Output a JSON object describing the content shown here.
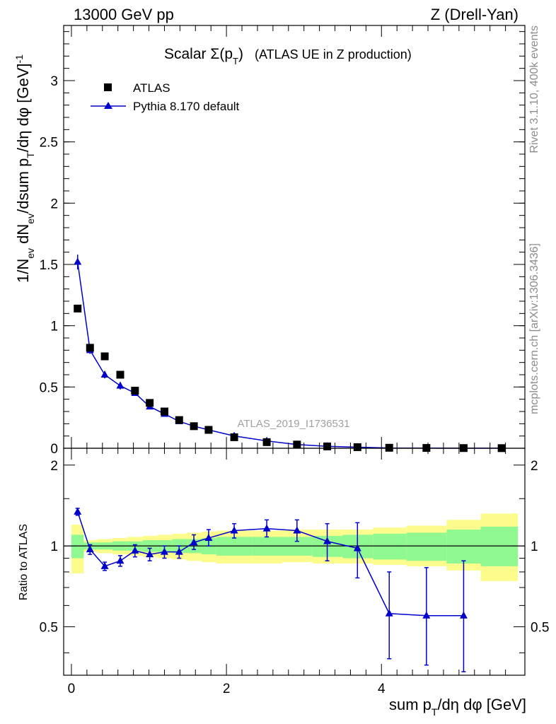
{
  "header": {
    "left": "13000 GeV pp",
    "right": "Z (Drell-Yan)"
  },
  "side": {
    "rivet": "Rivet 3.1.10,  400k events",
    "mcplots": "mcplots.cern.ch [arXiv:1306.3436]"
  },
  "watermark": "ATLAS_2019_I1736531",
  "colors": {
    "mc": "#0000cc",
    "data": "#000000",
    "band_stat": "#90f890",
    "band_total": "#fcfc8c",
    "side_text": "#8c8c8c"
  },
  "chart_data": [
    {
      "type": "scatter",
      "title": "Scalar Σ(pT) (ATLAS UE in Z production)",
      "ylabel": "1/Nev dNev/dsum pT/dη dφ [GeV]-1",
      "xlim": [
        -0.1,
        5.85
      ],
      "ylim": [
        0,
        3.45
      ],
      "yticks": [
        "0",
        "0.5",
        "1",
        "1.5",
        "2",
        "2.5",
        "3"
      ],
      "legend": {
        "position": "top-left",
        "entries": [
          "ATLAS",
          "Pythia 8.170 default"
        ]
      },
      "x": [
        0.08,
        0.24,
        0.43,
        0.63,
        0.82,
        1.01,
        1.2,
        1.39,
        1.58,
        1.77,
        2.1,
        2.52,
        2.91,
        3.3,
        3.69,
        4.1,
        4.58,
        5.06,
        5.55
      ],
      "series": [
        {
          "name": "ATLAS",
          "marker": "square",
          "values": [
            1.14,
            0.82,
            0.75,
            0.6,
            0.47,
            0.37,
            0.3,
            0.23,
            0.18,
            0.15,
            0.09,
            0.05,
            0.03,
            0.015,
            0.009,
            0.004,
            0.0025,
            0.0015,
            0.0009
          ]
        },
        {
          "name": "Pythia 8.170 default",
          "marker": "triangle",
          "values": [
            1.52,
            0.8,
            0.6,
            0.51,
            0.45,
            0.34,
            0.28,
            0.22,
            0.18,
            0.15,
            0.1,
            0.06,
            0.03,
            0.016,
            0.009,
            0.002,
            0.0014,
            0.0008,
            0.0005
          ],
          "errors": [
            0.06,
            0.03,
            0.03,
            0.03,
            0.02,
            0.02,
            0.01,
            0.01,
            0.01,
            0.01,
            0.005,
            0.003,
            0.002,
            0.001,
            0.001,
            0.001,
            0.0005,
            0.0003,
            0.0002
          ]
        }
      ]
    },
    {
      "type": "line",
      "ylabel": "Ratio to ATLAS",
      "xlabel": "sum pT/dη dφ [GeV]",
      "xlim": [
        -0.1,
        5.85
      ],
      "ylim": [
        0.33,
        2.31
      ],
      "xticks": [
        "0",
        "2",
        "4"
      ],
      "yticks": [
        "0.5",
        "1",
        "2"
      ],
      "x": [
        0.08,
        0.24,
        0.43,
        0.63,
        0.82,
        1.01,
        1.2,
        1.39,
        1.58,
        1.77,
        2.1,
        2.52,
        2.91,
        3.3,
        3.69,
        4.1,
        4.58,
        5.06
      ],
      "series": [
        {
          "name": "Pythia 8.170 default",
          "values": [
            1.34,
            0.97,
            0.84,
            0.88,
            0.96,
            0.93,
            0.95,
            0.95,
            1.03,
            1.07,
            1.14,
            1.16,
            1.14,
            1.04,
            0.98,
            0.56,
            0.55,
            0.55
          ],
          "err_low": [
            0.04,
            0.04,
            0.03,
            0.04,
            0.05,
            0.05,
            0.05,
            0.05,
            0.06,
            0.07,
            0.07,
            0.08,
            0.1,
            0.16,
            0.22,
            0.18,
            0.19,
            0.21
          ],
          "err_high": [
            0.04,
            0.04,
            0.03,
            0.04,
            0.05,
            0.05,
            0.05,
            0.05,
            0.07,
            0.08,
            0.07,
            0.09,
            0.11,
            0.17,
            0.24,
            0.24,
            0.28,
            0.33
          ]
        }
      ],
      "bands": {
        "edges": [
          0,
          0.16,
          0.33,
          0.53,
          0.72,
          0.92,
          1.11,
          1.3,
          1.49,
          1.68,
          1.87,
          2.33,
          2.72,
          3.11,
          3.5,
          3.89,
          4.32,
          4.84,
          5.28,
          5.76
        ],
        "stat_low": [
          0.9,
          0.97,
          0.97,
          0.96,
          0.96,
          0.95,
          0.95,
          0.94,
          0.94,
          0.93,
          0.92,
          0.92,
          0.92,
          0.91,
          0.9,
          0.89,
          0.88,
          0.86,
          0.84
        ],
        "stat_high": [
          1.1,
          1.03,
          1.03,
          1.04,
          1.04,
          1.05,
          1.05,
          1.06,
          1.06,
          1.07,
          1.08,
          1.08,
          1.08,
          1.09,
          1.1,
          1.11,
          1.12,
          1.15,
          1.18
        ],
        "total_low": [
          0.79,
          0.95,
          0.94,
          0.93,
          0.92,
          0.91,
          0.9,
          0.89,
          0.88,
          0.87,
          0.86,
          0.86,
          0.87,
          0.86,
          0.86,
          0.85,
          0.84,
          0.81,
          0.74
        ],
        "total_high": [
          1.2,
          1.05,
          1.06,
          1.07,
          1.08,
          1.09,
          1.1,
          1.11,
          1.12,
          1.13,
          1.14,
          1.14,
          1.15,
          1.15,
          1.15,
          1.17,
          1.19,
          1.25,
          1.32
        ]
      }
    }
  ]
}
